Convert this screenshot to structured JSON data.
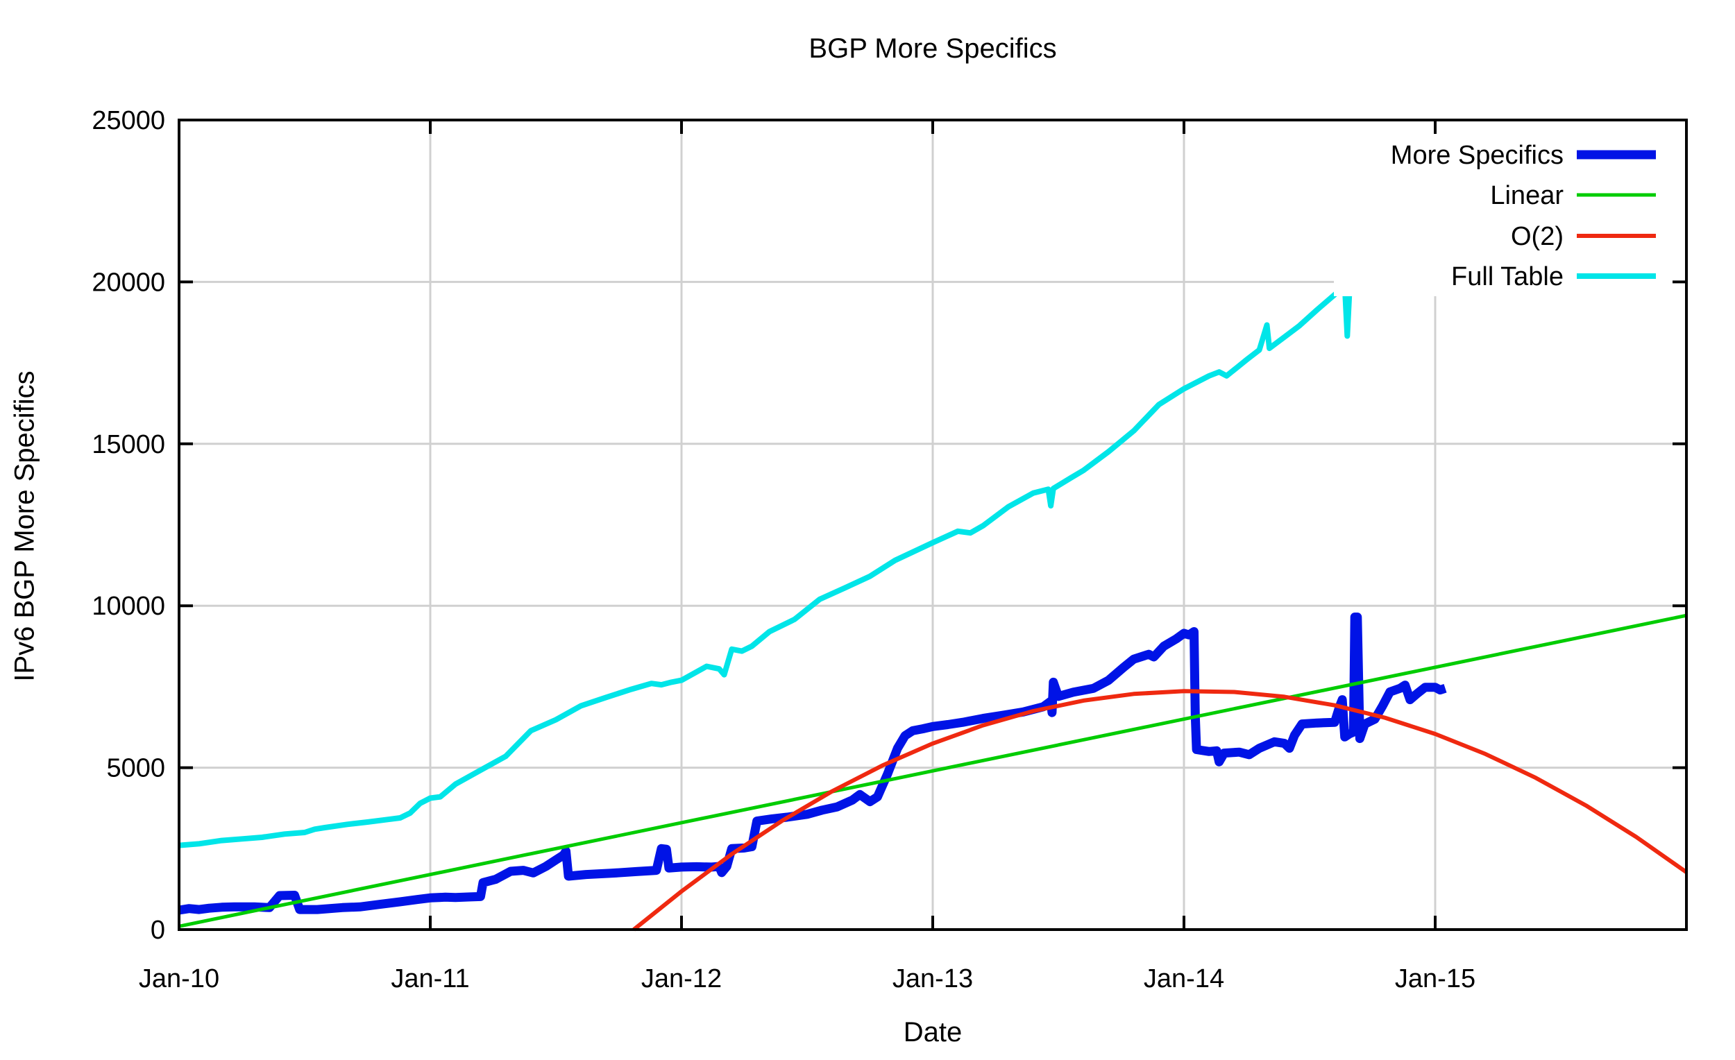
{
  "page": {
    "background": "#ffffff"
  },
  "chart_data": {
    "type": "line",
    "title": "BGP More Specifics",
    "xlabel": "Date",
    "ylabel": "IPv6 BGP More Specifics",
    "x_domain": [
      2010,
      2016
    ],
    "ylim": [
      0,
      25000
    ],
    "grid": true,
    "grid_color": "#d0d0d0",
    "axis_color": "#000000",
    "legend_position": "top-right-inside",
    "x_ticks": [
      {
        "t": 2010,
        "label": "Jan-10"
      },
      {
        "t": 2011,
        "label": "Jan-11"
      },
      {
        "t": 2012,
        "label": "Jan-12"
      },
      {
        "t": 2013,
        "label": "Jan-13"
      },
      {
        "t": 2014,
        "label": "Jan-14"
      },
      {
        "t": 2015,
        "label": "Jan-15"
      }
    ],
    "y_ticks": [
      {
        "v": 0,
        "label": "0"
      },
      {
        "v": 5000,
        "label": "5000"
      },
      {
        "v": 10000,
        "label": "10000"
      },
      {
        "v": 15000,
        "label": "15000"
      },
      {
        "v": 20000,
        "label": "20000"
      },
      {
        "v": 25000,
        "label": "25000"
      }
    ],
    "series": [
      {
        "name": "More Specifics",
        "color": "#0013e6",
        "width": 13,
        "points": [
          [
            2010.0,
            600
          ],
          [
            2010.04,
            650
          ],
          [
            2010.08,
            620
          ],
          [
            2010.12,
            660
          ],
          [
            2010.17,
            690
          ],
          [
            2010.22,
            700
          ],
          [
            2010.3,
            700
          ],
          [
            2010.36,
            680
          ],
          [
            2010.4,
            1050
          ],
          [
            2010.46,
            1060
          ],
          [
            2010.48,
            620
          ],
          [
            2010.55,
            620
          ],
          [
            2010.65,
            680
          ],
          [
            2010.72,
            700
          ],
          [
            2010.8,
            780
          ],
          [
            2010.88,
            860
          ],
          [
            2010.95,
            930
          ],
          [
            2011.0,
            980
          ],
          [
            2011.06,
            1000
          ],
          [
            2011.1,
            990
          ],
          [
            2011.16,
            1010
          ],
          [
            2011.2,
            1020
          ],
          [
            2011.21,
            1450
          ],
          [
            2011.26,
            1550
          ],
          [
            2011.32,
            1800
          ],
          [
            2011.37,
            1830
          ],
          [
            2011.41,
            1750
          ],
          [
            2011.46,
            1950
          ],
          [
            2011.5,
            2150
          ],
          [
            2011.53,
            2300
          ],
          [
            2011.54,
            2420
          ],
          [
            2011.55,
            1650
          ],
          [
            2011.62,
            1700
          ],
          [
            2011.72,
            1740
          ],
          [
            2011.82,
            1790
          ],
          [
            2011.9,
            1830
          ],
          [
            2011.92,
            2500
          ],
          [
            2011.94,
            2480
          ],
          [
            2011.95,
            1900
          ],
          [
            2012.0,
            1930
          ],
          [
            2012.06,
            1940
          ],
          [
            2012.12,
            1930
          ],
          [
            2012.15,
            1950
          ],
          [
            2012.16,
            1760
          ],
          [
            2012.18,
            1950
          ],
          [
            2012.2,
            2500
          ],
          [
            2012.25,
            2520
          ],
          [
            2012.28,
            2560
          ],
          [
            2012.3,
            3350
          ],
          [
            2012.36,
            3420
          ],
          [
            2012.42,
            3470
          ],
          [
            2012.5,
            3560
          ],
          [
            2012.56,
            3690
          ],
          [
            2012.62,
            3790
          ],
          [
            2012.68,
            4000
          ],
          [
            2012.71,
            4170
          ],
          [
            2012.75,
            3950
          ],
          [
            2012.78,
            4100
          ],
          [
            2012.82,
            4800
          ],
          [
            2012.86,
            5600
          ],
          [
            2012.89,
            5990
          ],
          [
            2012.92,
            6140
          ],
          [
            2012.96,
            6200
          ],
          [
            2013.0,
            6270
          ],
          [
            2013.06,
            6330
          ],
          [
            2013.12,
            6400
          ],
          [
            2013.2,
            6520
          ],
          [
            2013.28,
            6620
          ],
          [
            2013.36,
            6720
          ],
          [
            2013.44,
            6880
          ],
          [
            2013.47,
            7050
          ],
          [
            2013.475,
            6700
          ],
          [
            2013.48,
            7640
          ],
          [
            2013.5,
            7200
          ],
          [
            2013.56,
            7330
          ],
          [
            2013.64,
            7450
          ],
          [
            2013.7,
            7700
          ],
          [
            2013.76,
            8100
          ],
          [
            2013.8,
            8350
          ],
          [
            2013.86,
            8500
          ],
          [
            2013.88,
            8420
          ],
          [
            2013.92,
            8750
          ],
          [
            2013.97,
            8980
          ],
          [
            2014.0,
            9150
          ],
          [
            2014.02,
            9100
          ],
          [
            2014.04,
            9200
          ],
          [
            2014.045,
            6600
          ],
          [
            2014.05,
            5560
          ],
          [
            2014.1,
            5500
          ],
          [
            2014.13,
            5520
          ],
          [
            2014.14,
            5180
          ],
          [
            2014.16,
            5450
          ],
          [
            2014.22,
            5480
          ],
          [
            2014.26,
            5400
          ],
          [
            2014.3,
            5600
          ],
          [
            2014.36,
            5800
          ],
          [
            2014.4,
            5750
          ],
          [
            2014.42,
            5600
          ],
          [
            2014.44,
            6000
          ],
          [
            2014.47,
            6350
          ],
          [
            2014.53,
            6380
          ],
          [
            2014.6,
            6400
          ],
          [
            2014.62,
            6900
          ],
          [
            2014.63,
            7100
          ],
          [
            2014.64,
            5950
          ],
          [
            2014.66,
            6050
          ],
          [
            2014.675,
            6100
          ],
          [
            2014.68,
            9650
          ],
          [
            2014.69,
            9650
          ],
          [
            2014.7,
            5900
          ],
          [
            2014.72,
            6350
          ],
          [
            2014.76,
            6500
          ],
          [
            2014.79,
            6900
          ],
          [
            2014.82,
            7340
          ],
          [
            2014.86,
            7450
          ],
          [
            2014.88,
            7550
          ],
          [
            2014.9,
            7100
          ],
          [
            2014.93,
            7300
          ],
          [
            2014.96,
            7480
          ],
          [
            2015.0,
            7480
          ],
          [
            2015.02,
            7400
          ],
          [
            2015.04,
            7450
          ]
        ]
      },
      {
        "name": "Linear",
        "color": "#00cc00",
        "width": 5,
        "points": [
          [
            2010.0,
            100
          ],
          [
            2016.0,
            9700
          ]
        ]
      },
      {
        "name": "O(2)",
        "color": "#ef2910",
        "width": 6,
        "points": [
          [
            2011.81,
            0
          ],
          [
            2012.0,
            1180
          ],
          [
            2012.2,
            2330
          ],
          [
            2012.4,
            3360
          ],
          [
            2012.6,
            4273
          ],
          [
            2012.8,
            5069
          ],
          [
            2013.0,
            5746
          ],
          [
            2013.2,
            6306
          ],
          [
            2013.4,
            6748
          ],
          [
            2013.6,
            7072
          ],
          [
            2013.8,
            7278
          ],
          [
            2014.0,
            7366
          ],
          [
            2014.2,
            7337
          ],
          [
            2014.4,
            7190
          ],
          [
            2014.6,
            6925
          ],
          [
            2014.8,
            6542
          ],
          [
            2015.0,
            6041
          ],
          [
            2015.2,
            5423
          ],
          [
            2015.4,
            4687
          ],
          [
            2015.6,
            3833
          ],
          [
            2015.8,
            2861
          ],
          [
            2016.0,
            1771
          ]
        ]
      },
      {
        "name": "Full Table",
        "color": "#00e5e8",
        "width": 8,
        "points": [
          [
            2010.0,
            2600
          ],
          [
            2010.08,
            2650
          ],
          [
            2010.17,
            2750
          ],
          [
            2010.25,
            2800
          ],
          [
            2010.33,
            2850
          ],
          [
            2010.42,
            2950
          ],
          [
            2010.5,
            3000
          ],
          [
            2010.54,
            3100
          ],
          [
            2010.58,
            3150
          ],
          [
            2010.67,
            3250
          ],
          [
            2010.75,
            3320
          ],
          [
            2010.83,
            3400
          ],
          [
            2010.88,
            3450
          ],
          [
            2010.92,
            3600
          ],
          [
            2010.96,
            3900
          ],
          [
            2011.0,
            4060
          ],
          [
            2011.04,
            4100
          ],
          [
            2011.1,
            4490
          ],
          [
            2011.2,
            4920
          ],
          [
            2011.3,
            5350
          ],
          [
            2011.4,
            6140
          ],
          [
            2011.5,
            6480
          ],
          [
            2011.6,
            6910
          ],
          [
            2011.7,
            7170
          ],
          [
            2011.8,
            7420
          ],
          [
            2011.88,
            7600
          ],
          [
            2011.92,
            7560
          ],
          [
            2011.96,
            7640
          ],
          [
            2012.0,
            7700
          ],
          [
            2012.1,
            8130
          ],
          [
            2012.15,
            8050
          ],
          [
            2012.17,
            7870
          ],
          [
            2012.2,
            8660
          ],
          [
            2012.24,
            8600
          ],
          [
            2012.28,
            8750
          ],
          [
            2012.35,
            9200
          ],
          [
            2012.45,
            9580
          ],
          [
            2012.55,
            10200
          ],
          [
            2012.65,
            10550
          ],
          [
            2012.75,
            10910
          ],
          [
            2012.85,
            11400
          ],
          [
            2013.0,
            11950
          ],
          [
            2013.1,
            12300
          ],
          [
            2013.15,
            12250
          ],
          [
            2013.2,
            12470
          ],
          [
            2013.3,
            13050
          ],
          [
            2013.4,
            13480
          ],
          [
            2013.46,
            13600
          ],
          [
            2013.47,
            13090
          ],
          [
            2013.48,
            13620
          ],
          [
            2013.55,
            13950
          ],
          [
            2013.6,
            14180
          ],
          [
            2013.7,
            14760
          ],
          [
            2013.8,
            15400
          ],
          [
            2013.9,
            16210
          ],
          [
            2014.0,
            16700
          ],
          [
            2014.1,
            17100
          ],
          [
            2014.14,
            17220
          ],
          [
            2014.17,
            17100
          ],
          [
            2014.25,
            17600
          ],
          [
            2014.3,
            17900
          ],
          [
            2014.33,
            18670
          ],
          [
            2014.34,
            17950
          ],
          [
            2014.4,
            18300
          ],
          [
            2014.46,
            18650
          ],
          [
            2014.53,
            19140
          ],
          [
            2014.62,
            19740
          ],
          [
            2014.64,
            19890
          ],
          [
            2014.65,
            18330
          ],
          [
            2014.66,
            19890
          ],
          [
            2014.72,
            20170
          ],
          [
            2014.81,
            20710
          ],
          [
            2014.85,
            21050
          ],
          [
            2014.87,
            21450
          ],
          [
            2014.88,
            21200
          ],
          [
            2014.92,
            21390
          ],
          [
            2014.99,
            21750
          ],
          [
            2015.01,
            22140
          ],
          [
            2015.04,
            22180
          ]
        ]
      }
    ],
    "legend_entries": [
      "More Specifics",
      "Linear",
      "O(2)",
      "Full Table"
    ]
  }
}
